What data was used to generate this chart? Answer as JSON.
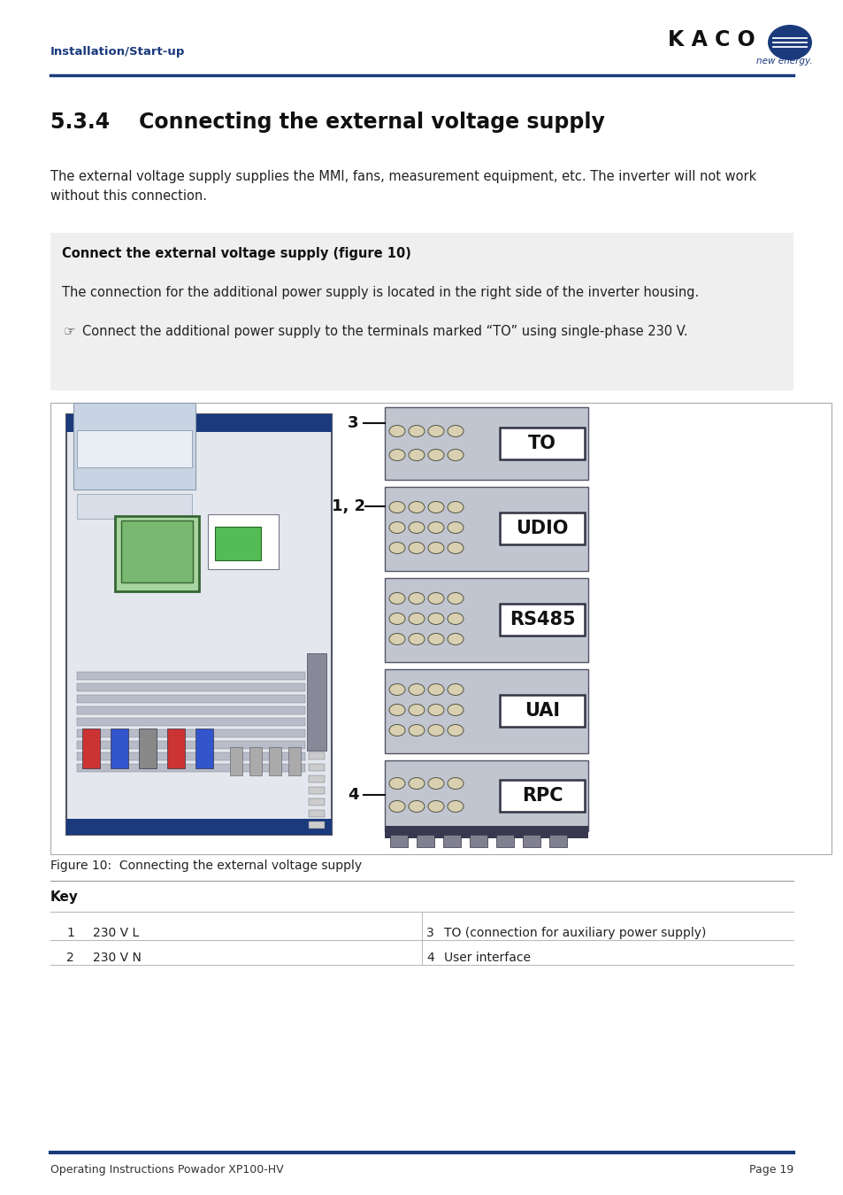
{
  "header_text_left": "Installation/Start-up",
  "header_text_left_color": "#1a3a7c",
  "header_line_color": "#1a3a7c",
  "kaco_text": "K A C O",
  "new_energy_text": "new energy.",
  "section_title": "5.3.4    Connecting the external voltage supply",
  "body_text1": "The external voltage supply supplies the MMI, fans, measurement equipment, etc. The inverter will not work\nwithout this connection.",
  "gray_box_title": "Connect the external voltage supply (figure 10)",
  "gray_box_text1": "The connection for the additional power supply is located in the right side of the inverter housing.",
  "gray_box_text2": "Connect the additional power supply to the terminals marked “TO” using single-phase 230 V.",
  "figure_caption": "Figure 10:  Connecting the external voltage supply",
  "key_title": "Key",
  "key_items": [
    {
      "num": "1",
      "text": "230 V L",
      "col": 0
    },
    {
      "num": "2",
      "text": "230 V N",
      "col": 0
    },
    {
      "num": "3",
      "text": "TO (connection for auxiliary power supply)",
      "col": 1
    },
    {
      "num": "4",
      "text": "User interface",
      "col": 1
    }
  ],
  "footer_left": "Operating Instructions Powador XP100-HV",
  "footer_right": "Page 19",
  "footer_line_color": "#1a3a7c",
  "background_color": "#ffffff",
  "gray_box_bg": "#efefef",
  "dark_blue": "#1a3a7c"
}
